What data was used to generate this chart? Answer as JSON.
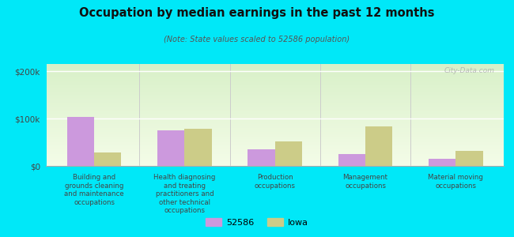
{
  "title": "Occupation by median earnings in the past 12 months",
  "subtitle": "(Note: State values scaled to 52586 population)",
  "categories": [
    "Building and\ngrounds cleaning\nand maintenance\noccupations",
    "Health diagnosing\nand treating\npractitioners and\nother technical\noccupations",
    "Production\noccupations",
    "Management\noccupations",
    "Material moving\noccupations"
  ],
  "values_52586": [
    103000,
    75000,
    35000,
    25000,
    15000
  ],
  "values_iowa": [
    28000,
    78000,
    52000,
    83000,
    32000
  ],
  "color_52586": "#cc99dd",
  "color_iowa": "#cccc88",
  "background_top": "#d8f0c8",
  "background_bottom": "#f4fce8",
  "bg_outer": "#00e8f8",
  "ylim": [
    0,
    215000
  ],
  "yticks": [
    0,
    100000,
    200000
  ],
  "ytick_labels": [
    "$0",
    "$100k",
    "$200k"
  ],
  "legend_label_52586": "52586",
  "legend_label_iowa": "Iowa",
  "watermark": "City-Data.com",
  "bar_width": 0.3
}
